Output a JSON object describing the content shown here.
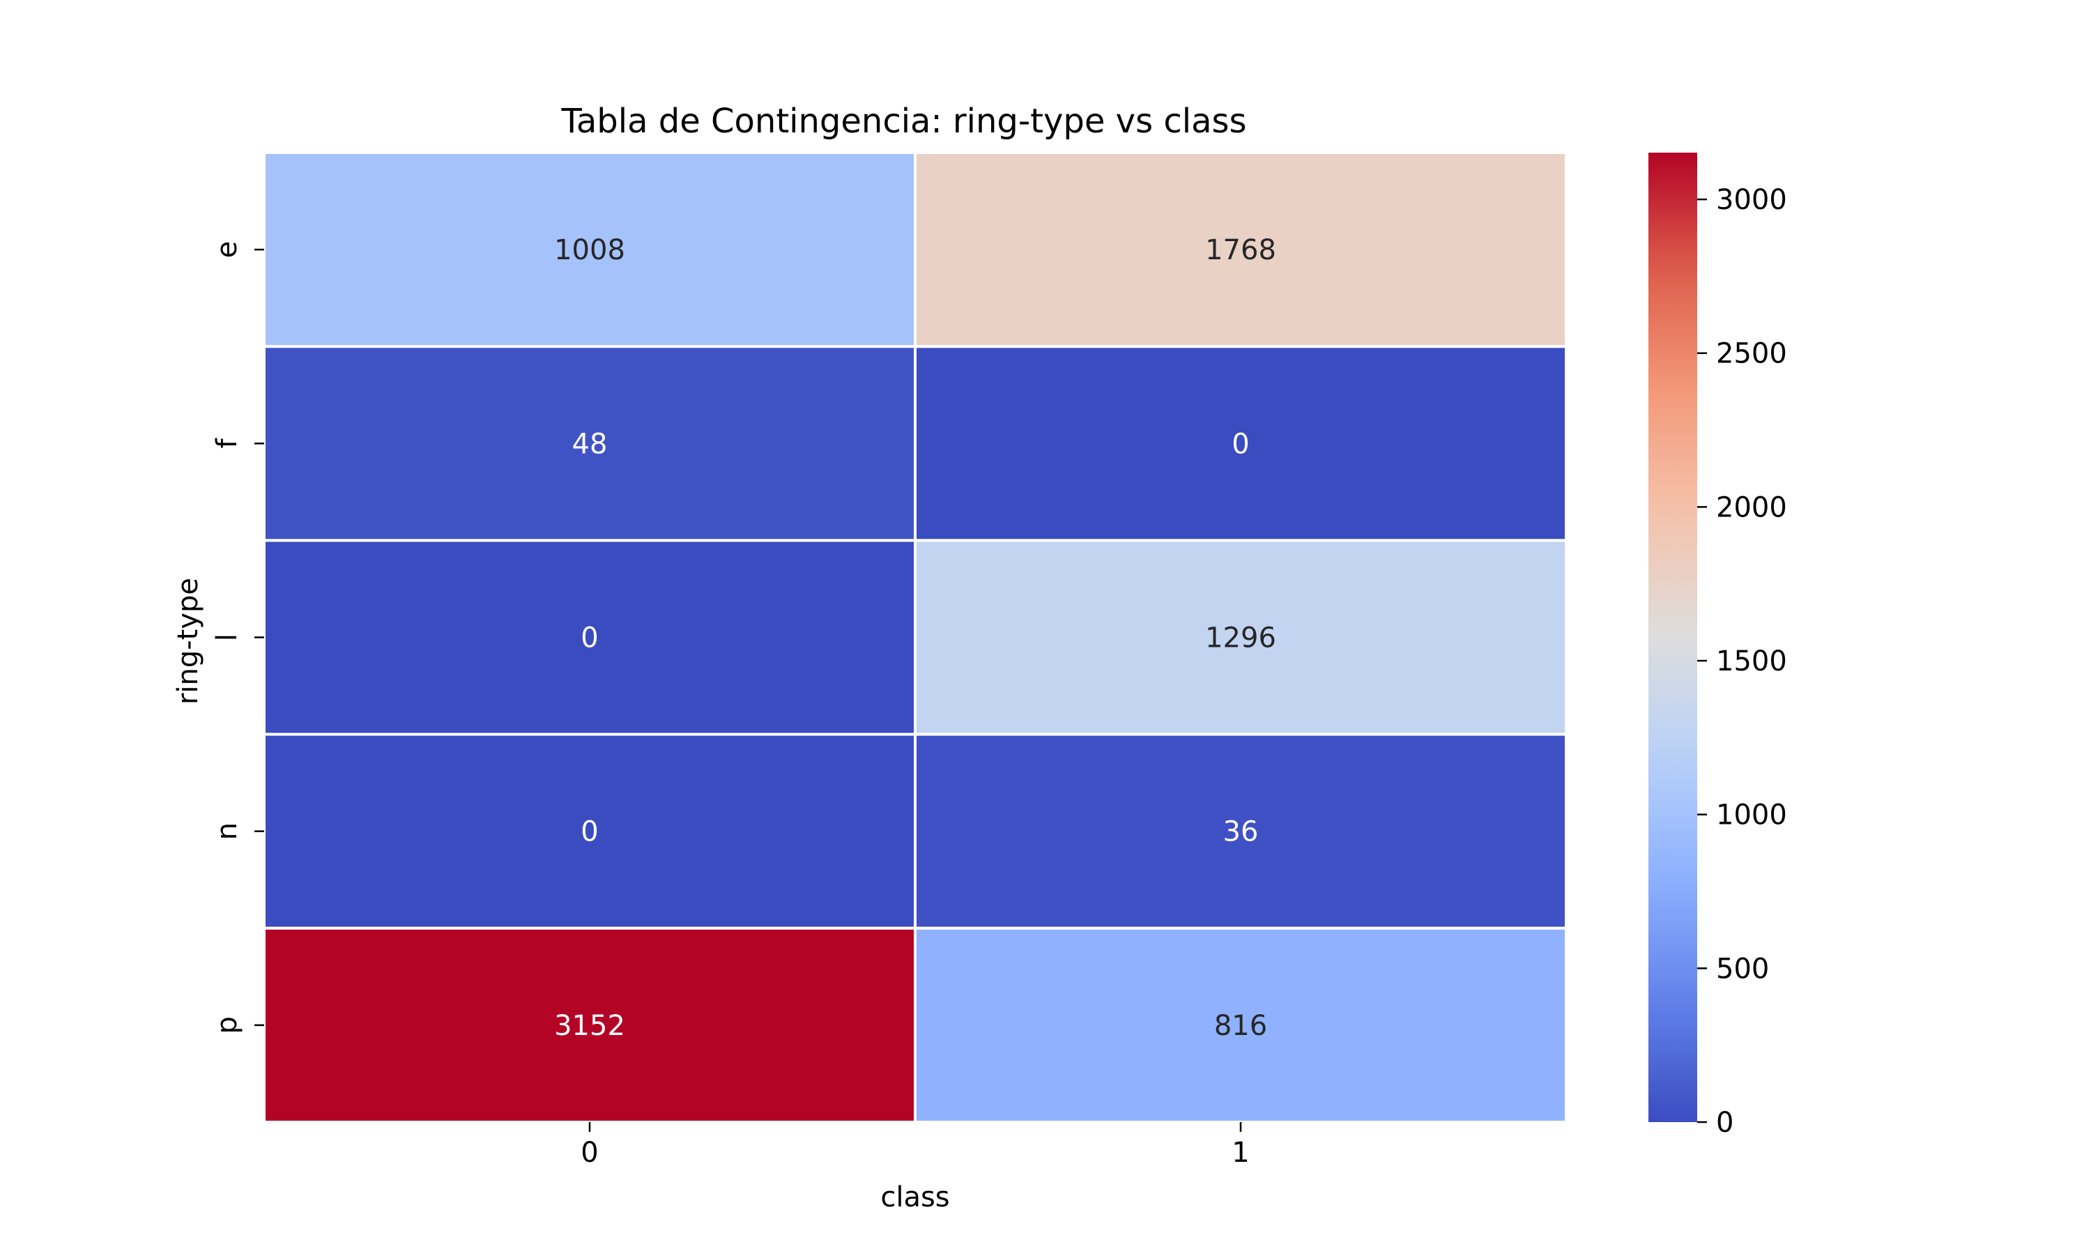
{
  "chart_data": {
    "type": "heatmap",
    "title": "Tabla de Contingencia: ring-type vs class",
    "xlabel": "class",
    "ylabel": "ring-type",
    "x_categories": [
      "0",
      "1"
    ],
    "y_categories": [
      "e",
      "f",
      "l",
      "n",
      "p"
    ],
    "values": [
      [
        1008,
        1768
      ],
      [
        48,
        0
      ],
      [
        0,
        1296
      ],
      [
        0,
        36
      ],
      [
        3152,
        816
      ]
    ],
    "annotations": [
      [
        "1008",
        "1768"
      ],
      [
        "48",
        "0"
      ],
      [
        "0",
        "1296"
      ],
      [
        "0",
        "36"
      ],
      [
        "3152",
        "816"
      ]
    ],
    "colormap": "coolwarm",
    "vmin": 0,
    "vmax": 3152,
    "colorbar_ticks": [
      0,
      500,
      1000,
      1500,
      2000,
      2500,
      3000
    ],
    "cell_border_color": "#ffffff",
    "dark_text_color": "#262626",
    "light_text_color": "#ffffff"
  }
}
